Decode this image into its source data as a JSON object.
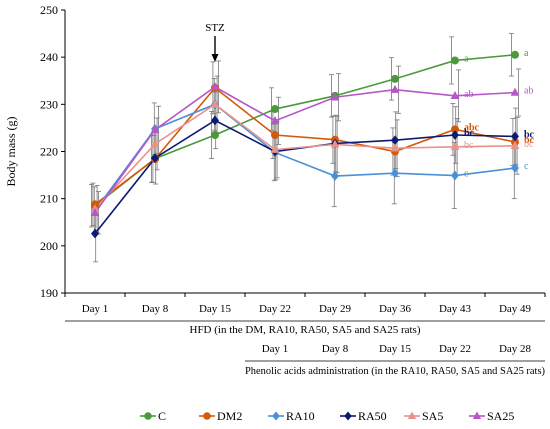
{
  "chart_data": {
    "type": "line",
    "ylabel": "Body mass (g)",
    "ylim": [
      190,
      250
    ],
    "yticks": [
      190,
      200,
      210,
      220,
      230,
      240,
      250
    ],
    "categories": [
      "Day 1",
      "Day 8",
      "Day 15",
      "Day 22",
      "Day 29",
      "Day 36",
      "Day 43",
      "Day 49"
    ],
    "annotation": {
      "text": "STZ",
      "category": "Day 15"
    },
    "axis_rows": [
      {
        "text": "HFD (in the DM, RA10, RA50, SA5 and SA25 rats)"
      },
      {
        "days": [
          "Day 1",
          "Day 8",
          "Day 15",
          "Day 22",
          "Day 28"
        ],
        "start_index": 3
      },
      {
        "text": "Phenolic acids administration (in the RA10, RA50, SA5 and SA25 rats)"
      }
    ],
    "series": [
      {
        "name": "C",
        "color": "#4a9a3c",
        "marker": "circle",
        "values": [
          208.5,
          218.5,
          223.5,
          229.0,
          231.8,
          235.4,
          239.3,
          240.5
        ],
        "errors": [
          4.5,
          5.0,
          5.0,
          4.5,
          4.5,
          4.5,
          5.0,
          4.5
        ],
        "letters": [
          "",
          "",
          "",
          "",
          "",
          "",
          "a",
          "a"
        ]
      },
      {
        "name": "DM2",
        "color": "#d35a0b",
        "marker": "circle",
        "values": [
          208.8,
          218.4,
          233.5,
          223.5,
          222.5,
          220.0,
          224.7,
          222.0
        ],
        "errors": [
          4.5,
          5.0,
          5.5,
          5.0,
          5.0,
          5.0,
          5.5,
          5.0
        ],
        "letters": [
          "",
          "",
          "",
          "",
          "",
          "",
          "abc",
          "bc"
        ]
      },
      {
        "name": "RA10",
        "color": "#4a90d9",
        "marker": "diamond",
        "values": [
          207.5,
          224.8,
          230.0,
          219.8,
          214.8,
          215.4,
          214.9,
          216.5
        ],
        "errors": [
          5.0,
          5.5,
          5.5,
          6.0,
          6.5,
          6.5,
          7.0,
          6.5
        ],
        "letters": [
          "",
          "",
          "",
          "",
          "",
          "",
          "c",
          "c"
        ]
      },
      {
        "name": "RA50",
        "color": "#0b1a72",
        "marker": "diamond",
        "values": [
          202.6,
          218.6,
          226.6,
          220.0,
          221.7,
          222.4,
          223.5,
          223.2
        ],
        "errors": [
          6.0,
          5.5,
          6.0,
          6.0,
          6.0,
          6.0,
          6.0,
          6.0
        ],
        "letters": [
          "",
          "",
          "",
          "",
          "",
          "",
          "bc",
          "bc"
        ]
      },
      {
        "name": "SA5",
        "color": "#e8928a",
        "marker": "triangle",
        "values": [
          207.8,
          221.6,
          230.0,
          220.4,
          221.5,
          220.7,
          221.0,
          221.2
        ],
        "errors": [
          5.0,
          5.5,
          6.0,
          6.0,
          6.0,
          6.0,
          6.0,
          6.0
        ],
        "letters": [
          "",
          "",
          "",
          "",
          "",
          "",
          "bc",
          "bc"
        ]
      },
      {
        "name": "SA25",
        "color": "#b657c9",
        "marker": "triangle",
        "values": [
          207.0,
          224.6,
          233.7,
          226.5,
          231.5,
          233.1,
          231.8,
          232.5
        ],
        "errors": [
          4.5,
          5.0,
          5.5,
          5.0,
          5.0,
          5.0,
          5.5,
          5.0
        ],
        "letters": [
          "",
          "",
          "",
          "",
          "",
          "",
          "ab",
          "ab"
        ]
      }
    ]
  }
}
